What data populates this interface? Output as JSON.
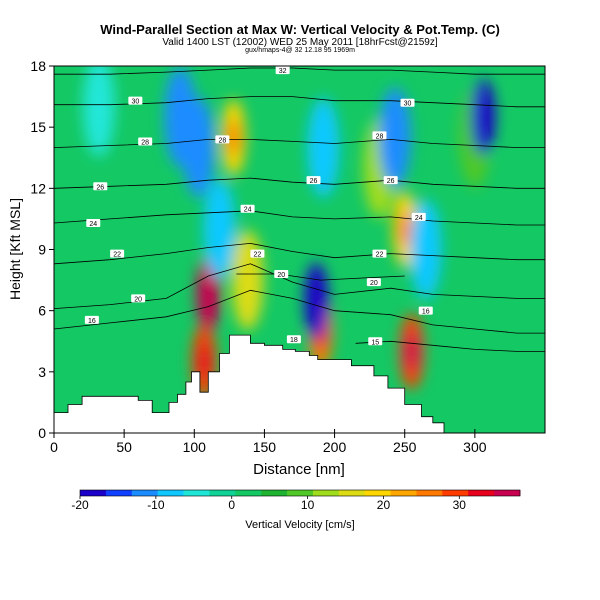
{
  "chart_data": {
    "type": "heatmap",
    "title": "Wind-Parallel Section at Max W: Vertical Velocity & Pot.Temp. (C)",
    "subtitle": "Valid 1400 LST (12002) WED 25 May 2011 [18hrFcst@2159z]",
    "source_line": "gux/hmaps-4@ 32 12.18 95 1969m",
    "xlabel": "Distance [nm]",
    "ylabel": "Height [Kft MSL]",
    "xlim": [
      0,
      350
    ],
    "ylim": [
      0,
      18
    ],
    "x_ticks": [
      0,
      50,
      100,
      150,
      200,
      250,
      300
    ],
    "y_ticks": [
      0,
      3,
      6,
      9,
      12,
      15,
      18
    ],
    "colorbar": {
      "label": "Vertical Velocity [cm/s]",
      "range": [
        -20,
        38
      ],
      "tick_values": [
        -20,
        -10,
        0,
        10,
        20,
        30
      ],
      "colors": [
        "#1a00c8",
        "#1040ff",
        "#1a8cff",
        "#10c8ff",
        "#20e6d8",
        "#10d296",
        "#14c864",
        "#1eb432",
        "#50c828",
        "#a0dc1e",
        "#dcdc14",
        "#ffd700",
        "#ffa500",
        "#ff7800",
        "#ff3c00",
        "#e6001e",
        "#c80050"
      ]
    },
    "velocity_features": [
      {
        "x": 110,
        "z": 6.8,
        "value": 38
      },
      {
        "x": 107,
        "z": 3.5,
        "value": 28
      },
      {
        "x": 128,
        "z": 14.5,
        "value": 20
      },
      {
        "x": 138,
        "z": 7.5,
        "value": 16
      },
      {
        "x": 190,
        "z": 5.0,
        "value": 26
      },
      {
        "x": 232,
        "z": 13.0,
        "value": 14
      },
      {
        "x": 250,
        "z": 10.0,
        "value": 20
      },
      {
        "x": 255,
        "z": 4.0,
        "value": 30
      },
      {
        "x": 300,
        "z": 14.5,
        "value": 8
      },
      {
        "x": 90,
        "z": 15.5,
        "value": -10
      },
      {
        "x": 118,
        "z": 10.0,
        "value": -9
      },
      {
        "x": 103,
        "z": 14.0,
        "value": -12
      },
      {
        "x": 187,
        "z": 6.5,
        "value": -20
      },
      {
        "x": 192,
        "z": 14.0,
        "value": -8
      },
      {
        "x": 243,
        "z": 14.5,
        "value": -10
      },
      {
        "x": 265,
        "z": 9.0,
        "value": -7
      },
      {
        "x": 306,
        "z": 15.5,
        "value": -20
      },
      {
        "x": 32,
        "z": 16.0,
        "value": -6
      }
    ],
    "terrain": [
      [
        0,
        0.8
      ],
      [
        0,
        1.0
      ],
      [
        10,
        1.0
      ],
      [
        10,
        1.4
      ],
      [
        20,
        1.4
      ],
      [
        20,
        1.8
      ],
      [
        60,
        1.8
      ],
      [
        60,
        1.6
      ],
      [
        70,
        1.6
      ],
      [
        70,
        1.0
      ],
      [
        82,
        1.0
      ],
      [
        82,
        1.5
      ],
      [
        88,
        1.5
      ],
      [
        88,
        1.9
      ],
      [
        94,
        1.9
      ],
      [
        94,
        2.5
      ],
      [
        98,
        2.5
      ],
      [
        98,
        3.0
      ],
      [
        104,
        3.0
      ],
      [
        104,
        2.0
      ],
      [
        110,
        2.0
      ],
      [
        110,
        3.0
      ],
      [
        118,
        3.0
      ],
      [
        118,
        3.9
      ],
      [
        125,
        3.9
      ],
      [
        125,
        4.8
      ],
      [
        140,
        4.8
      ],
      [
        140,
        4.4
      ],
      [
        150,
        4.4
      ],
      [
        150,
        4.3
      ],
      [
        163,
        4.3
      ],
      [
        163,
        4.1
      ],
      [
        172,
        4.1
      ],
      [
        172,
        4.0
      ],
      [
        182,
        4.0
      ],
      [
        182,
        3.8
      ],
      [
        188,
        3.8
      ],
      [
        188,
        3.6
      ],
      [
        212,
        3.6
      ],
      [
        212,
        3.3
      ],
      [
        228,
        3.3
      ],
      [
        228,
        2.8
      ],
      [
        238,
        2.8
      ],
      [
        238,
        2.2
      ],
      [
        250,
        2.2
      ],
      [
        250,
        1.4
      ],
      [
        262,
        1.4
      ],
      [
        262,
        0.8
      ],
      [
        270,
        0.8
      ],
      [
        270,
        0.5
      ],
      [
        278,
        0.5
      ],
      [
        278,
        0.0
      ]
    ],
    "isentropes": [
      {
        "label": "16",
        "x": [
          0,
          40,
          80,
          110,
          140,
          170,
          200,
          240,
          270,
          300,
          330,
          350
        ],
        "y": [
          5.1,
          5.4,
          5.7,
          6.2,
          7.0,
          6.6,
          6.0,
          5.8,
          5.3,
          5.1,
          4.9,
          4.9
        ],
        "label_at": [
          27,
          5.55
        ]
      },
      {
        "label": "15",
        "x": [
          215,
          240,
          270,
          300,
          330,
          350
        ],
        "y": [
          4.4,
          4.5,
          4.3,
          4.1,
          4.0,
          4.0
        ],
        "label_at": [
          229,
          4.5
        ]
      },
      {
        "label": "20",
        "x": [
          0,
          40,
          80,
          110,
          140,
          170,
          200,
          240,
          270,
          300,
          330,
          350
        ],
        "y": [
          6.1,
          6.3,
          6.6,
          7.7,
          8.3,
          7.4,
          6.8,
          7.1,
          6.8,
          6.7,
          6.6,
          6.6
        ],
        "label_at": [
          60,
          6.6
        ]
      },
      {
        "label": "20",
        "x": [
          130,
          160,
          190,
          220,
          250
        ],
        "y": [
          7.8,
          7.8,
          7.5,
          7.6,
          7.7
        ],
        "label_at": [
          162,
          7.8
        ]
      },
      {
        "label": "22",
        "x": [
          0,
          40,
          80,
          110,
          140,
          170,
          200,
          240,
          270,
          300,
          330,
          350
        ],
        "y": [
          8.3,
          8.5,
          8.8,
          9.1,
          9.3,
          8.9,
          8.6,
          8.8,
          8.7,
          8.6,
          8.5,
          8.5
        ],
        "label_at": [
          45,
          8.8
        ]
      },
      {
        "label": "24",
        "x": [
          0,
          40,
          80,
          110,
          140,
          170,
          200,
          240,
          270,
          300,
          330,
          350
        ],
        "y": [
          10.3,
          10.5,
          10.7,
          10.8,
          10.9,
          10.6,
          10.5,
          10.6,
          10.4,
          10.3,
          10.2,
          10.2
        ],
        "label_at": [
          28,
          10.3
        ]
      },
      {
        "label": "26",
        "x": [
          0,
          40,
          80,
          110,
          140,
          170,
          200,
          240,
          270,
          300,
          330,
          350
        ],
        "y": [
          12.0,
          12.1,
          12.2,
          12.4,
          12.5,
          12.3,
          12.2,
          12.4,
          12.2,
          12.1,
          12.0,
          12.0
        ],
        "label_at": [
          33,
          12.1
        ]
      },
      {
        "label": "28",
        "x": [
          0,
          40,
          80,
          110,
          140,
          170,
          200,
          240,
          270,
          300,
          330,
          350
        ],
        "y": [
          14.0,
          14.1,
          14.2,
          14.4,
          14.4,
          14.3,
          14.2,
          14.4,
          14.2,
          14.1,
          14.0,
          14.0
        ],
        "label_at": [
          65,
          14.3
        ]
      },
      {
        "label": "30",
        "x": [
          0,
          40,
          80,
          110,
          140,
          170,
          200,
          240,
          270,
          300,
          330,
          350
        ],
        "y": [
          16.1,
          16.1,
          16.2,
          16.4,
          16.5,
          16.5,
          16.3,
          16.3,
          16.2,
          16.1,
          16.0,
          16.0
        ],
        "label_at": [
          58,
          16.3
        ]
      },
      {
        "label": "32",
        "x": [
          0,
          40,
          80,
          110,
          140,
          170,
          200,
          240,
          270,
          300,
          330,
          350
        ],
        "y": [
          17.6,
          17.6,
          17.7,
          17.8,
          17.9,
          17.9,
          17.8,
          17.8,
          17.7,
          17.6,
          17.6,
          17.6
        ],
        "label_at": [
          163,
          17.8
        ]
      }
    ],
    "contour_labels_extra": [
      {
        "label": "26",
        "x": [
          185,
          12.4
        ]
      },
      {
        "label": "24",
        "x": [
          138,
          11.0
        ]
      },
      {
        "label": "22",
        "x": [
          145,
          8.8
        ]
      },
      {
        "label": "28",
        "x": [
          120,
          14.4
        ]
      },
      {
        "label": "26",
        "x": [
          240,
          12.4
        ]
      },
      {
        "label": "28",
        "x": [
          232,
          14.6
        ]
      },
      {
        "label": "24",
        "x": [
          260,
          10.6
        ]
      },
      {
        "label": "22",
        "x": [
          232,
          8.8
        ]
      },
      {
        "label": "20",
        "x": [
          228,
          7.4
        ]
      },
      {
        "label": "16",
        "x": [
          265,
          6.0
        ]
      },
      {
        "label": "30",
        "x": [
          252,
          16.2
        ]
      },
      {
        "label": "18",
        "x": [
          171,
          4.6
        ]
      }
    ]
  }
}
